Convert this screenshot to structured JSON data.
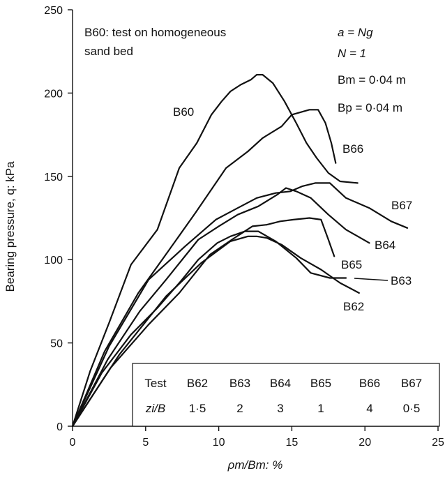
{
  "chart_data": {
    "type": "line",
    "xlabel": "ρm/Bm: %",
    "ylabel": "Bearing pressure, q: kPa",
    "xlim": [
      0,
      25
    ],
    "ylim": [
      0,
      250
    ],
    "x_ticks": [
      "0",
      "5",
      "10",
      "15",
      "20",
      "25"
    ],
    "y_ticks": [
      "0",
      "50",
      "100",
      "150",
      "200",
      "250"
    ],
    "grid": false,
    "annotations": {
      "title_line1": "B60: test on homogeneous",
      "title_line2": "sand bed",
      "params": [
        "a = Ng",
        "N = 1",
        "Bm = 0·04 m",
        "Bp = 0·04 m"
      ]
    },
    "series": [
      {
        "name": "B60",
        "x": [
          0,
          1.2,
          2.5,
          4.0,
          5.8,
          7.3,
          8.5,
          9.5,
          10.2,
          10.8,
          11.5,
          12.2,
          12.6,
          13.0,
          13.7,
          14.5,
          15.3,
          16.0,
          16.7,
          17.5,
          18.3,
          19.5
        ],
        "y": [
          0,
          33,
          62,
          97,
          118,
          155,
          170,
          187,
          195,
          201,
          205,
          208,
          211,
          211,
          206,
          195,
          182,
          170,
          161,
          152,
          147,
          146
        ]
      },
      {
        "name": "B66",
        "x": [
          0,
          2.2,
          4.5,
          6.3,
          8.4,
          10.5,
          12.0,
          13.0,
          14.3,
          15.0,
          16.2,
          16.8,
          17.3,
          17.7,
          18.0
        ],
        "y": [
          0,
          45,
          80,
          102,
          128,
          155,
          165,
          173,
          180,
          187,
          190,
          190,
          182,
          170,
          158
        ]
      },
      {
        "name": "B67",
        "x": [
          0,
          2.5,
          5.2,
          7.7,
          9.8,
          11.3,
          12.6,
          13.9,
          14.9,
          15.7,
          16.6,
          17.6,
          18.7,
          20.3,
          21.8,
          22.9
        ],
        "y": [
          0,
          48,
          88,
          108,
          124,
          131,
          137,
          140,
          141,
          144,
          146,
          146,
          137,
          131,
          123,
          119
        ]
      },
      {
        "name": "B64",
        "x": [
          0,
          2.4,
          4.6,
          6.4,
          8.6,
          10.0,
          11.3,
          12.7,
          14.0,
          14.6,
          15.3,
          16.3,
          17.5,
          18.7,
          20.3
        ],
        "y": [
          0,
          40,
          69,
          88,
          112,
          120,
          127,
          132,
          139,
          143,
          141,
          137,
          127,
          118,
          110
        ]
      },
      {
        "name": "B65",
        "x": [
          0,
          2.6,
          5.2,
          7.3,
          9.4,
          10.9,
          12.3,
          13.3,
          14.2,
          15.1,
          16.2,
          17.0,
          17.5,
          17.9
        ],
        "y": [
          0,
          35,
          61,
          80,
          103,
          112,
          120,
          121,
          123,
          124,
          125,
          124,
          112,
          102
        ]
      },
      {
        "name": "B63",
        "x": [
          0,
          2.0,
          4.0,
          5.8,
          7.4,
          8.6,
          9.9,
          10.8,
          11.8,
          12.7,
          13.9,
          15.3,
          16.3,
          17.6,
          18.7
        ],
        "y": [
          0,
          32,
          55,
          71,
          87,
          100,
          110,
          114,
          117,
          117,
          111,
          101,
          92,
          89,
          89
        ]
      },
      {
        "name": "B62",
        "x": [
          0,
          3.2,
          6.4,
          8.8,
          10.8,
          12.0,
          12.6,
          13.3,
          14.3,
          15.6,
          17.0,
          18.3,
          19.6
        ],
        "y": [
          0,
          43,
          78,
          98,
          111,
          114,
          114,
          113,
          109,
          101,
          94,
          86,
          80
        ]
      }
    ],
    "series_labels": [
      "B60",
      "B66",
      "B67",
      "B64",
      "B65",
      "B63",
      "B62"
    ],
    "table": {
      "row1_header": "Test",
      "row2_header": "zi/B",
      "columns": [
        "B62",
        "B63",
        "B64",
        "B65",
        "B66",
        "B67"
      ],
      "values": [
        "1·5",
        "2",
        "3",
        "1",
        "4",
        "0·5"
      ]
    }
  }
}
